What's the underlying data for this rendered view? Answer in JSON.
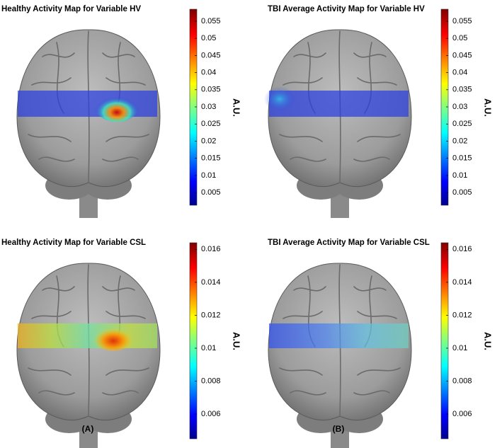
{
  "panels": [
    {
      "title": "Healthy Activity Map for Variable  HV",
      "colorbar": {
        "label": "A.U.",
        "lim": [
          0.0013,
          0.0585
        ],
        "ticks": [
          0.005,
          0.01,
          0.015,
          0.02,
          0.025,
          0.03,
          0.035,
          0.04,
          0.045,
          0.05,
          0.055
        ]
      }
    },
    {
      "title": "TBI Average Activity Map for Variable  HV",
      "colorbar": {
        "label": "A.U.",
        "lim": [
          0.0013,
          0.0585
        ],
        "ticks": [
          0.005,
          0.01,
          0.015,
          0.02,
          0.025,
          0.03,
          0.035,
          0.04,
          0.045,
          0.05,
          0.055
        ]
      }
    },
    {
      "title": "Healthy Activity Map for Variable  CSL",
      "colorbar": {
        "label": "A.U.",
        "lim": [
          0.0045,
          0.0164
        ],
        "ticks": [
          0.006,
          0.008,
          0.01,
          0.012,
          0.014,
          0.016
        ]
      }
    },
    {
      "title": "TBI Average Activity Map for Variable  CSL",
      "colorbar": {
        "label": "A.U.",
        "lim": [
          0.0045,
          0.0164
        ],
        "ticks": [
          0.006,
          0.008,
          0.01,
          0.012,
          0.014,
          0.016
        ]
      }
    }
  ],
  "captions": [
    "(A)",
    "(B)"
  ]
}
